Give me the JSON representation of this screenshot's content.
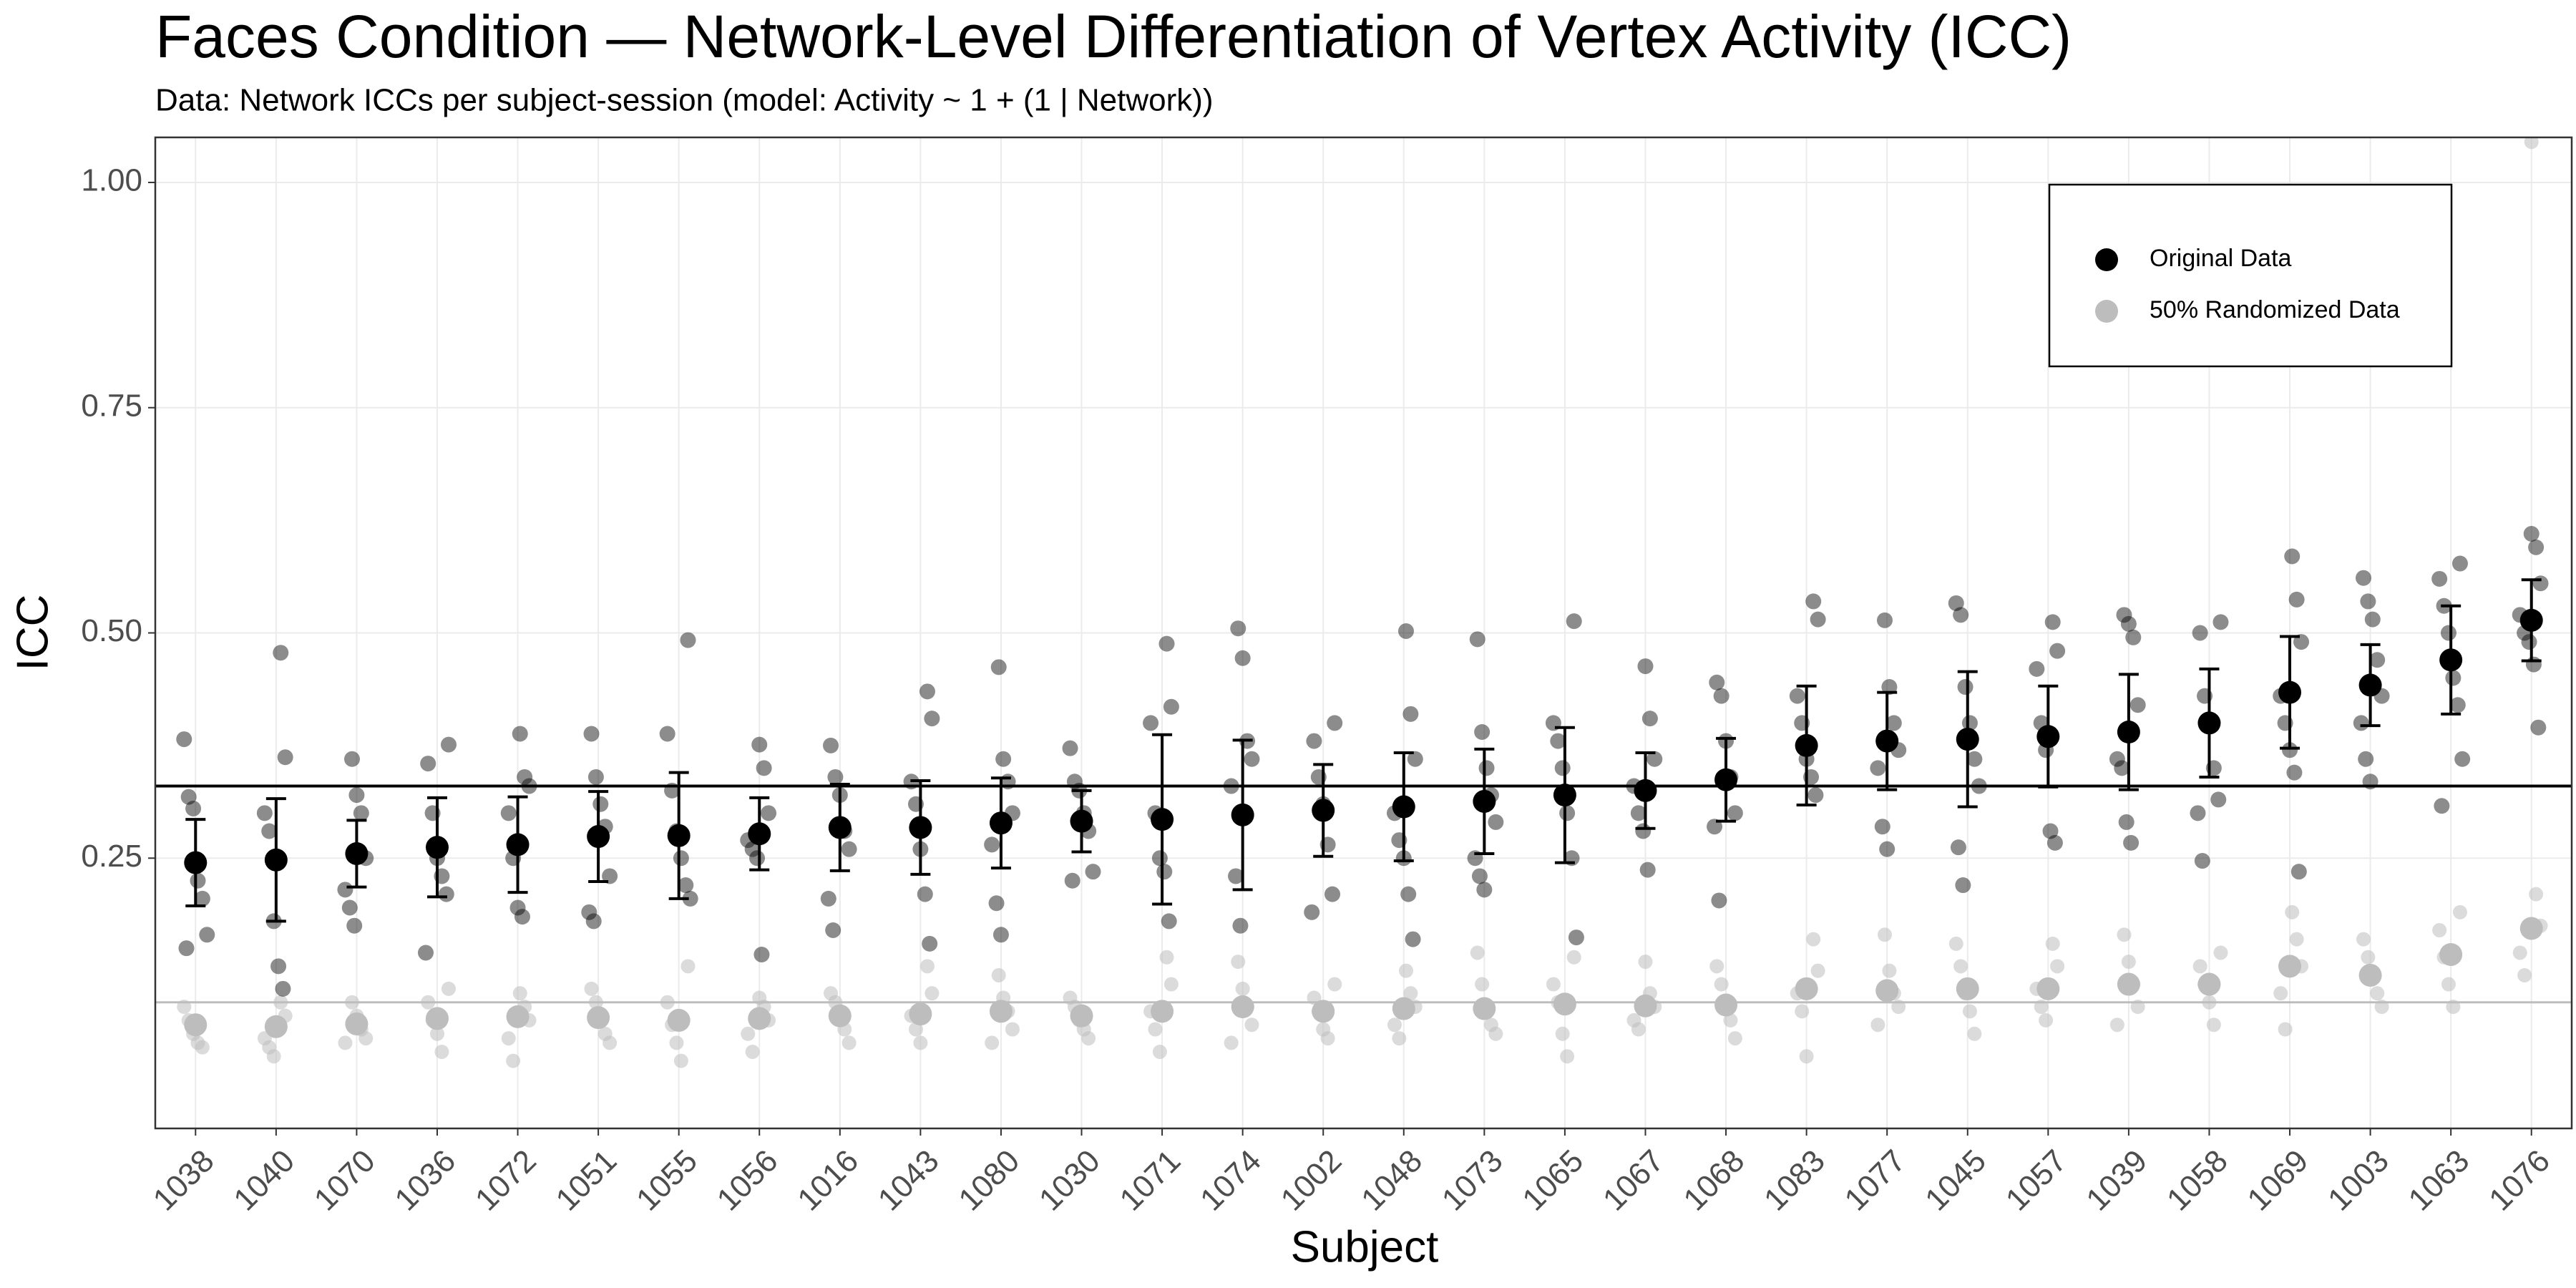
{
  "chart_data": {
    "type": "dot",
    "title": "Faces Condition — Network-Level Differentiation of Vertex Activity (ICC)",
    "subtitle": "Data: Network ICCs per subject-session (model: Activity ~ 1 + (1 | Network))",
    "x_label": "Subject",
    "y_label": "ICC",
    "categories": [
      "1038",
      "1040",
      "1070",
      "1036",
      "1072",
      "1051",
      "1055",
      "1056",
      "1016",
      "1043",
      "1080",
      "1030",
      "1071",
      "1074",
      "1002",
      "1048",
      "1073",
      "1065",
      "1067",
      "1068",
      "1083",
      "1077",
      "1045",
      "1057",
      "1039",
      "1058",
      "1069",
      "1003",
      "1063",
      "1076"
    ],
    "series": [
      {
        "name": "Original Data",
        "color": "#000000",
        "values": [
          0.245,
          0.248,
          0.255,
          0.262,
          0.265,
          0.274,
          0.275,
          0.277,
          0.284,
          0.284,
          0.289,
          0.291,
          0.293,
          0.298,
          0.303,
          0.307,
          0.313,
          0.32,
          0.325,
          0.337,
          0.375,
          0.38,
          0.382,
          0.385,
          0.39,
          0.4,
          0.434,
          0.442,
          0.47,
          0.514
        ],
        "errors": [
          0.048,
          0.068,
          0.037,
          0.055,
          0.053,
          0.05,
          0.07,
          0.04,
          0.048,
          0.052,
          0.05,
          0.034,
          0.094,
          0.083,
          0.051,
          0.06,
          0.058,
          0.075,
          0.042,
          0.046,
          0.066,
          0.054,
          0.075,
          0.056,
          0.064,
          0.06,
          0.062,
          0.045,
          0.06,
          0.045
        ],
        "points": [
          [
            0.382,
            0.318,
            0.305,
            0.225,
            0.205,
            0.165,
            0.15
          ],
          [
            0.478,
            0.362,
            0.3,
            0.28,
            0.18,
            0.13,
            0.105
          ],
          [
            0.36,
            0.32,
            0.3,
            0.25,
            0.215,
            0.195,
            0.175
          ],
          [
            0.376,
            0.355,
            0.3,
            0.25,
            0.23,
            0.21,
            0.145
          ],
          [
            0.388,
            0.34,
            0.33,
            0.3,
            0.25,
            0.195,
            0.185
          ],
          [
            0.388,
            0.34,
            0.31,
            0.285,
            0.23,
            0.19,
            0.18
          ],
          [
            0.492,
            0.388,
            0.325,
            0.28,
            0.25,
            0.22,
            0.205
          ],
          [
            0.376,
            0.35,
            0.3,
            0.27,
            0.26,
            0.25,
            0.143
          ],
          [
            0.375,
            0.34,
            0.32,
            0.28,
            0.26,
            0.205,
            0.17
          ],
          [
            0.435,
            0.405,
            0.335,
            0.31,
            0.26,
            0.21,
            0.155
          ],
          [
            0.462,
            0.36,
            0.335,
            0.3,
            0.265,
            0.2,
            0.165
          ],
          [
            0.372,
            0.335,
            0.325,
            0.3,
            0.28,
            0.235,
            0.225
          ],
          [
            0.488,
            0.418,
            0.4,
            0.3,
            0.25,
            0.235,
            0.18
          ],
          [
            0.505,
            0.472,
            0.38,
            0.36,
            0.33,
            0.23,
            0.175
          ],
          [
            0.4,
            0.38,
            0.34,
            0.31,
            0.265,
            0.21,
            0.19
          ],
          [
            0.502,
            0.41,
            0.36,
            0.3,
            0.27,
            0.25,
            0.21,
            0.16
          ],
          [
            0.493,
            0.39,
            0.35,
            0.32,
            0.29,
            0.25,
            0.23,
            0.215
          ],
          [
            0.513,
            0.4,
            0.38,
            0.35,
            0.3,
            0.25,
            0.162
          ],
          [
            0.463,
            0.405,
            0.36,
            0.33,
            0.3,
            0.28,
            0.237
          ],
          [
            0.445,
            0.43,
            0.38,
            0.34,
            0.3,
            0.285,
            0.203
          ],
          [
            0.535,
            0.515,
            0.43,
            0.4,
            0.36,
            0.34,
            0.32
          ],
          [
            0.514,
            0.44,
            0.4,
            0.37,
            0.35,
            0.285,
            0.26
          ],
          [
            0.533,
            0.52,
            0.44,
            0.4,
            0.36,
            0.33,
            0.262,
            0.22
          ],
          [
            0.512,
            0.48,
            0.46,
            0.4,
            0.37,
            0.28,
            0.267
          ],
          [
            0.52,
            0.51,
            0.495,
            0.42,
            0.36,
            0.35,
            0.29,
            0.267
          ],
          [
            0.512,
            0.5,
            0.43,
            0.4,
            0.35,
            0.315,
            0.3,
            0.247
          ],
          [
            0.585,
            0.537,
            0.49,
            0.43,
            0.4,
            0.37,
            0.345,
            0.235
          ],
          [
            0.561,
            0.535,
            0.515,
            0.47,
            0.43,
            0.4,
            0.36,
            0.335
          ],
          [
            0.577,
            0.56,
            0.53,
            0.5,
            0.45,
            0.42,
            0.36,
            0.308
          ],
          [
            0.61,
            0.595,
            0.555,
            0.52,
            0.5,
            0.49,
            0.465,
            0.395
          ]
        ]
      },
      {
        "name": "50% Randomized Data",
        "color": "#bdbdbd",
        "values": [
          0.065,
          0.063,
          0.066,
          0.072,
          0.074,
          0.073,
          0.07,
          0.072,
          0.075,
          0.077,
          0.08,
          0.075,
          0.08,
          0.085,
          0.08,
          0.083,
          0.083,
          0.088,
          0.086,
          0.087,
          0.105,
          0.103,
          0.105,
          0.105,
          0.11,
          0.11,
          0.13,
          0.12,
          0.143,
          0.172
        ],
        "points": [
          [
            0.085,
            0.07,
            0.055,
            0.045,
            0.04
          ],
          [
            0.09,
            0.075,
            0.05,
            0.04,
            0.03
          ],
          [
            0.09,
            0.075,
            0.06,
            0.05,
            0.045
          ],
          [
            0.105,
            0.09,
            0.07,
            0.055,
            0.035
          ],
          [
            0.1,
            0.085,
            0.07,
            0.05,
            0.025
          ],
          [
            0.105,
            0.09,
            0.07,
            0.055,
            0.045
          ],
          [
            0.13,
            0.09,
            0.065,
            0.045,
            0.025
          ],
          [
            0.095,
            0.085,
            0.07,
            0.055,
            0.035
          ],
          [
            0.1,
            0.09,
            0.075,
            0.06,
            0.045
          ],
          [
            0.13,
            0.1,
            0.075,
            0.06,
            0.045
          ],
          [
            0.12,
            0.095,
            0.08,
            0.06,
            0.045
          ],
          [
            0.095,
            0.085,
            0.07,
            0.06,
            0.05
          ],
          [
            0.14,
            0.11,
            0.08,
            0.06,
            0.035
          ],
          [
            0.135,
            0.105,
            0.085,
            0.065,
            0.045
          ],
          [
            0.11,
            0.095,
            0.08,
            0.06,
            0.05
          ],
          [
            0.125,
            0.1,
            0.085,
            0.065,
            0.05
          ],
          [
            0.145,
            0.11,
            0.085,
            0.065,
            0.055
          ],
          [
            0.14,
            0.11,
            0.09,
            0.055,
            0.03
          ],
          [
            0.135,
            0.1,
            0.085,
            0.07,
            0.06
          ],
          [
            0.13,
            0.11,
            0.085,
            0.07,
            0.05
          ],
          [
            0.16,
            0.125,
            0.1,
            0.08,
            0.03
          ],
          [
            0.165,
            0.125,
            0.1,
            0.085,
            0.065
          ],
          [
            0.155,
            0.13,
            0.1,
            0.08,
            0.055
          ],
          [
            0.155,
            0.13,
            0.105,
            0.085,
            0.07
          ],
          [
            0.165,
            0.135,
            0.11,
            0.085,
            0.065
          ],
          [
            0.145,
            0.13,
            0.11,
            0.09,
            0.065
          ],
          [
            0.19,
            0.16,
            0.13,
            0.1,
            0.06
          ],
          [
            0.16,
            0.14,
            0.12,
            0.1,
            0.085
          ],
          [
            0.19,
            0.17,
            0.14,
            0.11,
            0.085
          ],
          [
            1.045,
            0.21,
            0.175,
            0.145,
            0.12
          ]
        ]
      }
    ],
    "hlines": [
      {
        "value": 0.33,
        "color": "#000000"
      },
      {
        "value": 0.09,
        "color": "#bdbdbd"
      }
    ],
    "ylim": [
      -0.05,
      1.05
    ],
    "yticks": [
      {
        "value": 0.25,
        "label": "0.25"
      },
      {
        "value": 0.5,
        "label": "0.50"
      },
      {
        "value": 0.75,
        "label": "0.75"
      },
      {
        "value": 1.0,
        "label": "1.00"
      }
    ],
    "grid": true,
    "legend": "top-right"
  }
}
